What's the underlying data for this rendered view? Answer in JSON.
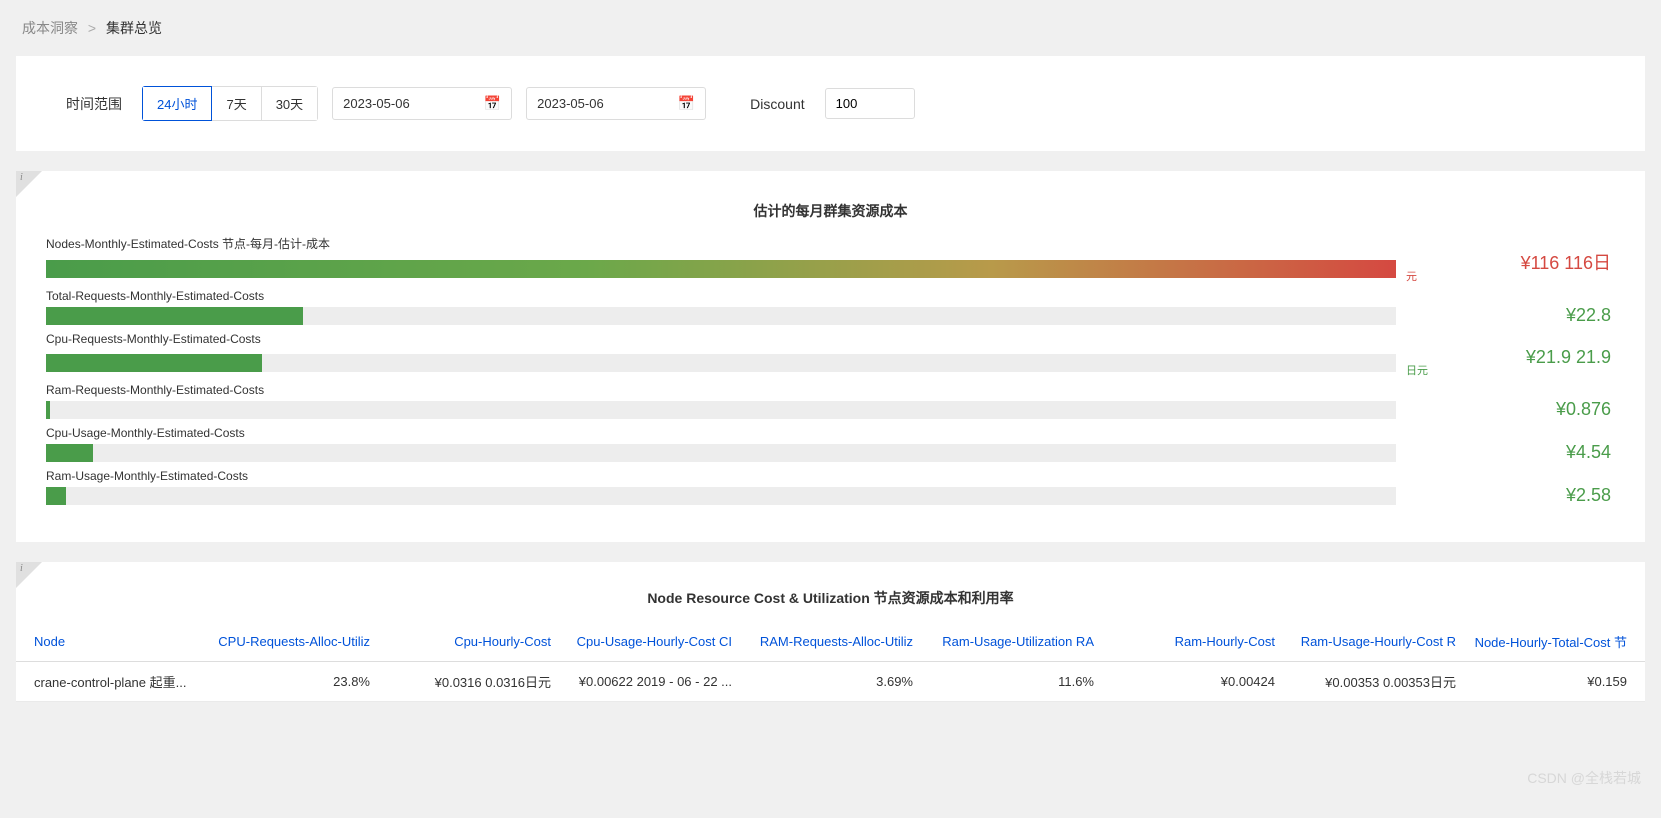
{
  "breadcrumb": {
    "parent": "成本洞察",
    "separator": ">",
    "current": "集群总览"
  },
  "filters": {
    "time_range_label": "时间范围",
    "range_buttons": [
      "24小时",
      "7天",
      "30天"
    ],
    "active_range_index": 0,
    "date_from": "2023-05-06",
    "date_to": "2023-05-06",
    "discount_label": "Discount",
    "discount_value": "100"
  },
  "cost_chart": {
    "title": "估计的每月群集资源成本",
    "track_color": "#ededed",
    "green_color": "#4a9c4a",
    "red_color": "#d54941",
    "max_value": 116,
    "rows": [
      {
        "label": "Nodes-Monthly-Estimated-Costs 节点-每月-估计-成本",
        "value_display": "¥116 116日",
        "suffix": "元",
        "value": 116,
        "fill_pct": 100,
        "color_class": "gradient-bar",
        "value_class": "red"
      },
      {
        "label": "Total-Requests-Monthly-Estimated-Costs",
        "value_display": "¥22.8",
        "suffix": "",
        "value": 22.8,
        "fill_pct": 19,
        "color_class": "green-bar",
        "value_class": "green"
      },
      {
        "label": "Cpu-Requests-Monthly-Estimated-Costs",
        "value_display": "¥21.9 21.9",
        "suffix": "日元",
        "value": 21.9,
        "fill_pct": 16,
        "color_class": "green-bar",
        "value_class": "green"
      },
      {
        "label": "Ram-Requests-Monthly-Estimated-Costs",
        "value_display": "¥0.876",
        "suffix": "",
        "value": 0.876,
        "fill_pct": 0.3,
        "color_class": "green-bar",
        "value_class": "green"
      },
      {
        "label": "Cpu-Usage-Monthly-Estimated-Costs",
        "value_display": "¥4.54",
        "suffix": "",
        "value": 4.54,
        "fill_pct": 3.5,
        "color_class": "green-bar",
        "value_class": "green"
      },
      {
        "label": "Ram-Usage-Monthly-Estimated-Costs",
        "value_display": "¥2.58",
        "suffix": "",
        "value": 2.58,
        "fill_pct": 1.5,
        "color_class": "green-bar",
        "value_class": "green"
      }
    ]
  },
  "table": {
    "title": "Node Resource Cost & Utilization 节点资源成本和利用率",
    "columns": [
      "Node",
      "CPU-Requests-Alloc-Utiliz",
      "Cpu-Hourly-Cost",
      "Cpu-Usage-Hourly-Cost CI",
      "RAM-Requests-Alloc-Utiliz",
      "Ram-Usage-Utilization RA",
      "Ram-Hourly-Cost",
      "Ram-Usage-Hourly-Cost R",
      "Node-Hourly-Total-Cost 节"
    ],
    "col_widths": [
      "170px",
      "170px",
      "170px",
      "170px",
      "170px",
      "170px",
      "170px",
      "170px",
      "170px"
    ],
    "rows": [
      [
        "crane-control-plane 起重...",
        "23.8%",
        "¥0.0316 0.0316日元",
        "¥0.00622 2019 - 06 - 22 ...",
        "3.69%",
        "11.6%",
        "¥0.00424",
        "¥0.00353 0.00353日元",
        "¥0.159"
      ]
    ]
  },
  "watermark": "CSDN @全栈若城"
}
